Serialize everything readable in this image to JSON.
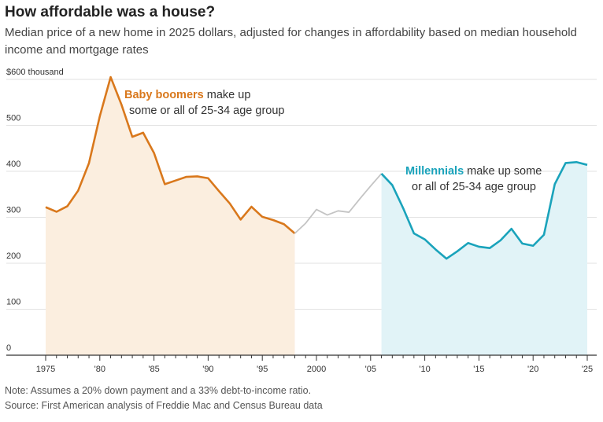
{
  "title": "How affordable was a house?",
  "subtitle": "Median price of a new home in 2025 dollars, adjusted for changes in affordability based on median household income and mortgage rates",
  "note": "Note: Assumes a 20% down payment and a 33% debt-to-income ratio.",
  "source": "Source: First American analysis of Freddie Mac and Census Bureau data",
  "colors": {
    "boomers": "#d9781c",
    "boomers_fill": "#fbeedf",
    "middle": "#c4c4c4",
    "millennials": "#1aa3bb",
    "millennials_fill": "#e1f3f7"
  },
  "annotations": {
    "boomers": {
      "bold": "Baby boomers",
      "rest1": " make up",
      "line2": "some or all of 25-34 age group"
    },
    "millennials": {
      "bold": "Millennials",
      "rest1": " make up some",
      "line2": "or all of 25-34 age group"
    }
  },
  "chart_data": {
    "type": "line",
    "title": "How affordable was a house?",
    "ylim": [
      0,
      600
    ],
    "yticks": [
      0,
      100,
      200,
      300,
      400,
      500,
      600
    ],
    "ytick_labels": [
      "0",
      "100",
      "200",
      "300",
      "400",
      "500",
      "$600 thousand"
    ],
    "xlim": [
      1975,
      2025
    ],
    "xticks": [
      1975,
      1980,
      1985,
      1990,
      1995,
      2000,
      2005,
      2010,
      2015,
      2020,
      2025
    ],
    "xtick_labels": [
      "1975",
      "'80",
      "'85",
      "'90",
      "'95",
      "2000",
      "'05",
      "'10",
      "'15",
      "'20",
      "'25"
    ],
    "grid": true,
    "series": [
      {
        "name": "Baby boomers",
        "x": [
          1975,
          1976,
          1977,
          1978,
          1979,
          1980,
          1981,
          1982,
          1983,
          1984,
          1985,
          1986,
          1987,
          1988,
          1989,
          1990,
          1991,
          1992,
          1993,
          1994,
          1995,
          1996,
          1997,
          1998
        ],
        "values": [
          322,
          312,
          324,
          358,
          418,
          520,
          605,
          545,
          475,
          484,
          440,
          372,
          380,
          388,
          389,
          385,
          357,
          330,
          295,
          323,
          301,
          294,
          285,
          265
        ]
      },
      {
        "name": "",
        "x": [
          1998,
          1999,
          2000,
          2001,
          2002,
          2003,
          2004,
          2005,
          2006
        ],
        "values": [
          265,
          287,
          317,
          305,
          314,
          311,
          340,
          368,
          395
        ]
      },
      {
        "name": "Millennials",
        "x": [
          2006,
          2007,
          2008,
          2009,
          2010,
          2011,
          2012,
          2013,
          2014,
          2015,
          2016,
          2017,
          2018,
          2019,
          2020,
          2021,
          2022,
          2023,
          2024,
          2025
        ],
        "values": [
          395,
          370,
          320,
          265,
          252,
          230,
          210,
          226,
          244,
          236,
          233,
          250,
          275,
          243,
          238,
          262,
          372,
          418,
          420,
          414
        ]
      }
    ]
  }
}
